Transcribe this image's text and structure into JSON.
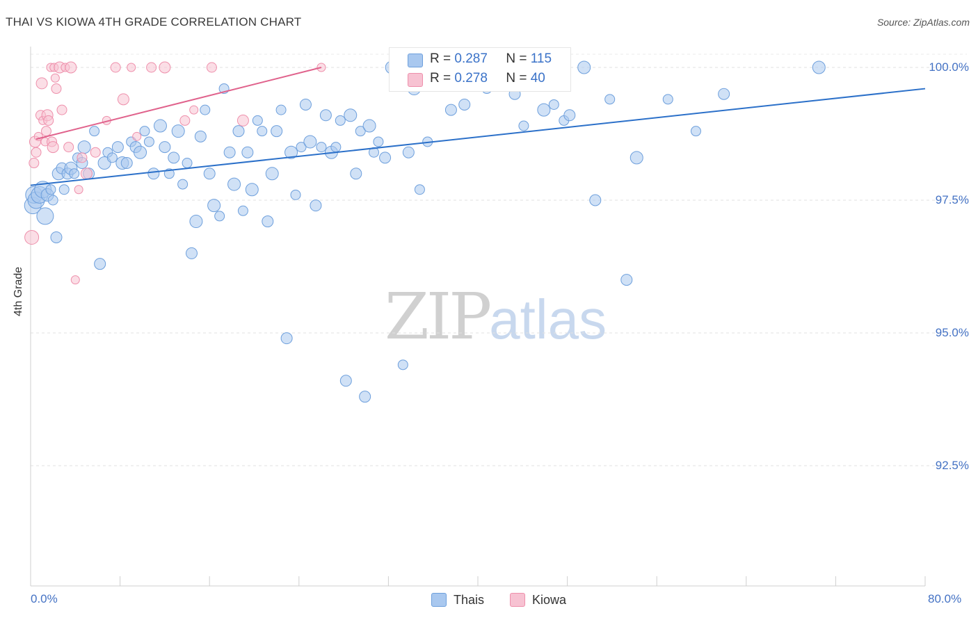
{
  "title": "THAI VS KIOWA 4TH GRADE CORRELATION CHART",
  "source": "Source: ZipAtlas.com",
  "watermark": {
    "zip": "ZIP",
    "atlas": "atlas"
  },
  "legend_top": {
    "rows": [
      {
        "r_label": "R =",
        "r_value": "0.287",
        "n_label": "N =",
        "n_value": "115"
      },
      {
        "r_label": "R =",
        "r_value": "0.278",
        "n_label": "N =",
        "n_value": "40"
      }
    ]
  },
  "bottom_legend": {
    "thais": "Thais",
    "kiowa": "Kiowa"
  },
  "colors": {
    "thais_fill": "#a9c8ef",
    "thais_stroke": "#6d9fdc",
    "thais_line": "#2b70c9",
    "kiowa_fill": "#f7c2d2",
    "kiowa_stroke": "#ee8fab",
    "kiowa_line": "#e0628c",
    "tick_label": "#4472c4"
  },
  "chart_data": {
    "type": "scatter",
    "title": "THAI VS KIOWA 4TH GRADE CORRELATION CHART",
    "ylabel": "4th Grade",
    "xlabel": "",
    "xlim": [
      0,
      80
    ],
    "ylim": [
      90.2,
      100.35
    ],
    "x_ticks": [
      {
        "value": 0,
        "label": "0.0%"
      },
      {
        "value": 80,
        "label": "80.0%"
      }
    ],
    "y_ticks": [
      {
        "value": 100,
        "label": "100.0%"
      },
      {
        "value": 97.5,
        "label": "97.5%"
      },
      {
        "value": 95,
        "label": "95.0%"
      },
      {
        "value": 92.5,
        "label": "92.5%"
      }
    ],
    "grid": true,
    "legend_placement": "bottom-center",
    "series": [
      {
        "name": "Thais",
        "color": "#a9c8ef",
        "R": 0.287,
        "N": 115,
        "trend": {
          "x": [
            0,
            80
          ],
          "y": [
            97.78,
            99.6
          ]
        },
        "points": [
          [
            0.2,
            97.4
          ],
          [
            0.3,
            97.6
          ],
          [
            0.5,
            97.5
          ],
          [
            0.8,
            97.6
          ],
          [
            1.1,
            97.7
          ],
          [
            1.3,
            97.2
          ],
          [
            1.5,
            97.6
          ],
          [
            1.8,
            97.7
          ],
          [
            2.0,
            97.5
          ],
          [
            2.3,
            96.8
          ],
          [
            2.5,
            98.0
          ],
          [
            2.8,
            98.1
          ],
          [
            3.0,
            97.7
          ],
          [
            3.3,
            98.0
          ],
          [
            3.6,
            98.1
          ],
          [
            3.9,
            98.0
          ],
          [
            4.2,
            98.3
          ],
          [
            4.6,
            98.2
          ],
          [
            4.8,
            98.5
          ],
          [
            5.2,
            98.0
          ],
          [
            5.7,
            98.8
          ],
          [
            6.2,
            96.3
          ],
          [
            6.6,
            98.2
          ],
          [
            6.9,
            98.4
          ],
          [
            7.3,
            98.3
          ],
          [
            7.8,
            98.5
          ],
          [
            8.2,
            98.2
          ],
          [
            8.6,
            98.2
          ],
          [
            9.0,
            98.6
          ],
          [
            9.4,
            98.5
          ],
          [
            9.8,
            98.4
          ],
          [
            10.2,
            98.8
          ],
          [
            10.6,
            98.6
          ],
          [
            11.0,
            98.0
          ],
          [
            11.6,
            98.9
          ],
          [
            12.0,
            98.5
          ],
          [
            12.4,
            98.0
          ],
          [
            12.8,
            98.3
          ],
          [
            13.2,
            98.8
          ],
          [
            13.6,
            97.8
          ],
          [
            14.0,
            98.2
          ],
          [
            14.4,
            96.5
          ],
          [
            14.8,
            97.1
          ],
          [
            15.2,
            98.7
          ],
          [
            15.6,
            99.2
          ],
          [
            16.0,
            98.0
          ],
          [
            16.4,
            97.4
          ],
          [
            16.9,
            97.2
          ],
          [
            17.3,
            99.6
          ],
          [
            17.8,
            98.4
          ],
          [
            18.2,
            97.8
          ],
          [
            18.6,
            98.8
          ],
          [
            19.0,
            97.3
          ],
          [
            19.4,
            98.4
          ],
          [
            19.8,
            97.7
          ],
          [
            20.3,
            99.0
          ],
          [
            20.7,
            98.8
          ],
          [
            21.2,
            97.1
          ],
          [
            21.6,
            98.0
          ],
          [
            22.0,
            98.8
          ],
          [
            22.4,
            99.2
          ],
          [
            22.9,
            94.9
          ],
          [
            23.3,
            98.4
          ],
          [
            23.7,
            97.6
          ],
          [
            24.2,
            98.5
          ],
          [
            24.6,
            99.3
          ],
          [
            25.0,
            98.6
          ],
          [
            25.5,
            97.4
          ],
          [
            26.0,
            98.5
          ],
          [
            26.4,
            99.1
          ],
          [
            26.9,
            98.4
          ],
          [
            27.3,
            98.5
          ],
          [
            27.7,
            99.0
          ],
          [
            28.2,
            94.1
          ],
          [
            28.6,
            99.1
          ],
          [
            29.1,
            98.0
          ],
          [
            29.5,
            98.8
          ],
          [
            29.9,
            93.8
          ],
          [
            30.3,
            98.9
          ],
          [
            30.7,
            98.4
          ],
          [
            31.1,
            98.6
          ],
          [
            31.7,
            98.3
          ],
          [
            32.3,
            100.0
          ],
          [
            32.8,
            99.8
          ],
          [
            33.3,
            94.4
          ],
          [
            33.8,
            98.4
          ],
          [
            34.3,
            99.6
          ],
          [
            34.8,
            97.7
          ],
          [
            35.5,
            98.6
          ],
          [
            36.2,
            99.8
          ],
          [
            36.9,
            100.0
          ],
          [
            37.6,
            99.2
          ],
          [
            38.2,
            99.9
          ],
          [
            38.8,
            99.3
          ],
          [
            39.4,
            100.0
          ],
          [
            40.1,
            99.8
          ],
          [
            40.8,
            99.6
          ],
          [
            41.5,
            100.0
          ],
          [
            42.4,
            99.9
          ],
          [
            43.3,
            99.5
          ],
          [
            44.1,
            98.9
          ],
          [
            45.0,
            99.7
          ],
          [
            45.9,
            99.2
          ],
          [
            46.8,
            99.3
          ],
          [
            47.7,
            99.0
          ],
          [
            48.2,
            99.1
          ],
          [
            49.5,
            100.0
          ],
          [
            50.5,
            97.5
          ],
          [
            51.8,
            99.4
          ],
          [
            53.3,
            96.0
          ],
          [
            54.2,
            98.3
          ],
          [
            57.0,
            99.4
          ],
          [
            59.5,
            98.8
          ],
          [
            62.0,
            99.5
          ],
          [
            70.5,
            100.0
          ]
        ]
      },
      {
        "name": "Kiowa",
        "color": "#f7c2d2",
        "R": 0.278,
        "N": 40,
        "trend": {
          "x": [
            0.5,
            26
          ],
          "y": [
            98.65,
            100.0
          ]
        },
        "points": [
          [
            0.1,
            96.8
          ],
          [
            0.3,
            98.2
          ],
          [
            0.4,
            98.6
          ],
          [
            0.5,
            98.4
          ],
          [
            0.7,
            98.7
          ],
          [
            0.9,
            99.1
          ],
          [
            1.0,
            99.7
          ],
          [
            1.1,
            99.0
          ],
          [
            1.3,
            98.6
          ],
          [
            1.4,
            98.8
          ],
          [
            1.5,
            99.1
          ],
          [
            1.6,
            99.0
          ],
          [
            1.8,
            100.0
          ],
          [
            1.9,
            98.6
          ],
          [
            2.0,
            98.5
          ],
          [
            2.1,
            100.0
          ],
          [
            2.2,
            99.8
          ],
          [
            2.3,
            99.6
          ],
          [
            2.6,
            100.0
          ],
          [
            2.8,
            99.2
          ],
          [
            3.1,
            100.0
          ],
          [
            3.4,
            98.5
          ],
          [
            3.6,
            100.0
          ],
          [
            4.0,
            96.0
          ],
          [
            4.3,
            97.7
          ],
          [
            4.6,
            98.3
          ],
          [
            5.0,
            98.0
          ],
          [
            5.8,
            98.4
          ],
          [
            6.8,
            99.0
          ],
          [
            7.6,
            100.0
          ],
          [
            8.3,
            99.4
          ],
          [
            9.0,
            100.0
          ],
          [
            9.5,
            98.7
          ],
          [
            10.8,
            100.0
          ],
          [
            12.0,
            100.0
          ],
          [
            13.8,
            99.0
          ],
          [
            14.6,
            99.2
          ],
          [
            16.2,
            100.0
          ],
          [
            19.0,
            99.0
          ],
          [
            26.0,
            100.0
          ]
        ]
      }
    ]
  }
}
